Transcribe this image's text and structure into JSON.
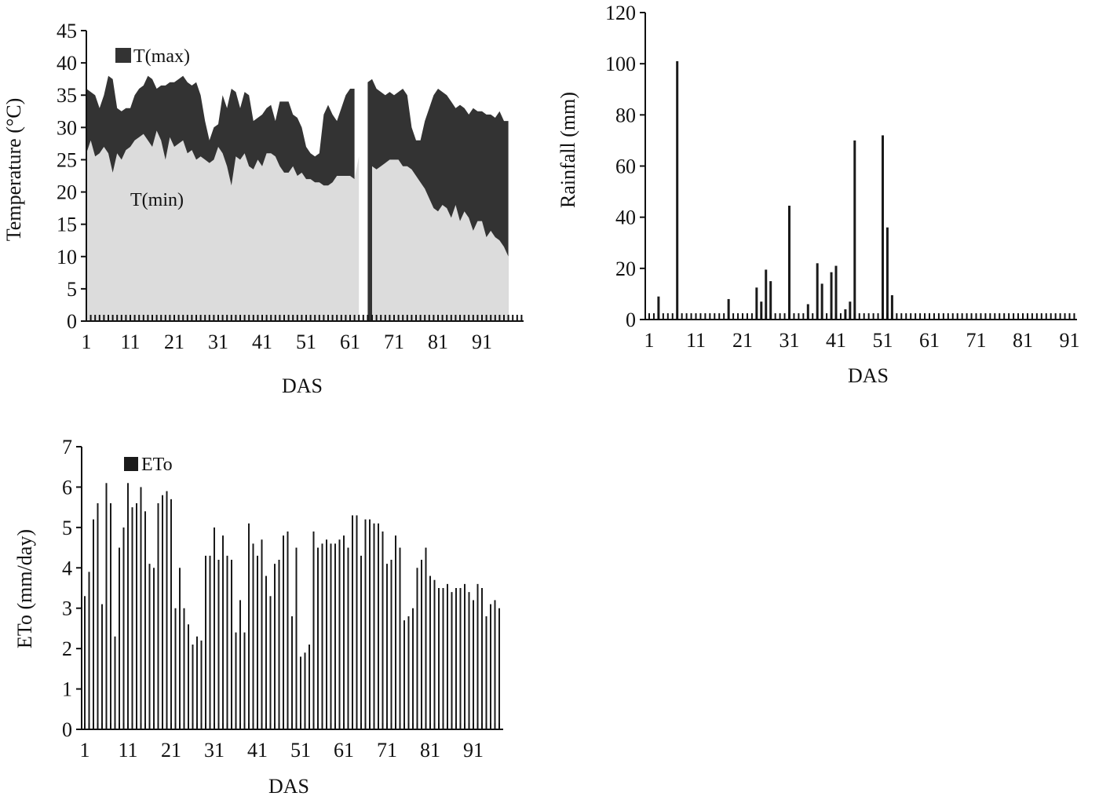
{
  "colors": {
    "tmax": "#333333",
    "tmin": "#dcdcdc",
    "bar": "#1a1a1a",
    "axis": "#111111"
  },
  "chart_data": [
    {
      "type": "area",
      "xlabel": "DAS",
      "ylabel": "Temperature (°C)",
      "ylim": [
        0,
        45
      ],
      "yticks": [
        "0",
        "5",
        "10",
        "15",
        "20",
        "25",
        "30",
        "35",
        "40",
        "45"
      ],
      "xticks": [
        "1",
        "11",
        "21",
        "31",
        "41",
        "51",
        "61",
        "71",
        "81",
        "91"
      ],
      "legend_placement": "top-left",
      "series": [
        {
          "name": "T(max)",
          "values": [
            36,
            35.5,
            35,
            33,
            35,
            38,
            37.5,
            33,
            32.5,
            33,
            33,
            35,
            36,
            36.5,
            38,
            37.5,
            36,
            36.5,
            36.5,
            37,
            37,
            37.5,
            38,
            37,
            36.5,
            37,
            35,
            31,
            28,
            30,
            30.5,
            35,
            33,
            36,
            35.5,
            33,
            35.5,
            35,
            31,
            31.5,
            32,
            33,
            33.5,
            31,
            34,
            34,
            34,
            32,
            31.5,
            30,
            27,
            26,
            25.5,
            26,
            32,
            33.5,
            32,
            31,
            33,
            35,
            36,
            36,
            null,
            null,
            37,
            37.5,
            36,
            35.5,
            35,
            35.5,
            35,
            35.5,
            36,
            35,
            30,
            28,
            28,
            31,
            33,
            35,
            36,
            35.5,
            35,
            34,
            33,
            33.5,
            33,
            32,
            33,
            32.5,
            32.5,
            32,
            32,
            31.5,
            32.5,
            31,
            31
          ]
        },
        {
          "name": "T(min)",
          "values": [
            26,
            28,
            25.5,
            26,
            27,
            26,
            23,
            26,
            25,
            26.5,
            27,
            28,
            28.5,
            29,
            28,
            27,
            29.5,
            28,
            25,
            28.5,
            27,
            27.5,
            28,
            26,
            26.5,
            25,
            25.5,
            25,
            24.5,
            25,
            27,
            26,
            24,
            21,
            25.5,
            25,
            26,
            24,
            23.5,
            25,
            24,
            26,
            26,
            25.5,
            24,
            23,
            23,
            24,
            22.5,
            23,
            22,
            22,
            21.5,
            21.5,
            21,
            21,
            21.5,
            22.5,
            22.5,
            22.5,
            22.5,
            22,
            25.5,
            null,
            null,
            24,
            23.5,
            24,
            24.5,
            25,
            25,
            25,
            24,
            24,
            23.5,
            22.5,
            21.5,
            20.5,
            19,
            17.5,
            17,
            18,
            17.5,
            16,
            18,
            15.5,
            17,
            16,
            14,
            15.5,
            15.5,
            13,
            14,
            13,
            12.5,
            11.5,
            10
          ]
        }
      ]
    },
    {
      "type": "bar",
      "xlabel": "DAS",
      "ylabel": "Rainfall (mm)",
      "ylim": [
        0,
        120
      ],
      "yticks": [
        "0",
        "20",
        "40",
        "60",
        "80",
        "100",
        "120"
      ],
      "xticks": [
        "1",
        "11",
        "21",
        "31",
        "41",
        "51",
        "61",
        "71",
        "81",
        "91"
      ],
      "x": [
        3,
        7,
        18,
        24,
        25,
        26,
        27,
        31,
        35,
        37,
        38,
        40,
        41,
        43,
        44,
        45,
        51,
        52,
        53
      ],
      "values": [
        9,
        101,
        8,
        12.5,
        7,
        19.5,
        15,
        44.5,
        6,
        22,
        14,
        18.5,
        21,
        4,
        7,
        70,
        72,
        36,
        9.5
      ]
    },
    {
      "type": "bar",
      "xlabel": "DAS",
      "ylabel": "ETo (mm/day)",
      "ylim": [
        0,
        7
      ],
      "yticks": [
        "0",
        "1",
        "2",
        "3",
        "4",
        "5",
        "6",
        "7"
      ],
      "xticks": [
        "1",
        "11",
        "21",
        "31",
        "41",
        "51",
        "61",
        "71",
        "81",
        "91"
      ],
      "legend_placement": "top-left",
      "series": [
        {
          "name": "ETo",
          "values": [
            3.3,
            3.9,
            5.2,
            5.6,
            3.1,
            6.1,
            5.6,
            2.3,
            4.5,
            5.0,
            6.1,
            5.5,
            5.6,
            6.0,
            5.4,
            4.1,
            4.0,
            5.6,
            5.8,
            5.9,
            5.7,
            3.0,
            4.0,
            3.0,
            2.6,
            2.1,
            2.3,
            2.2,
            4.3,
            4.3,
            5.0,
            4.2,
            4.8,
            4.3,
            4.2,
            2.4,
            3.2,
            2.4,
            5.1,
            4.6,
            4.3,
            4.7,
            3.8,
            3.3,
            4.1,
            4.2,
            4.8,
            4.9,
            2.8,
            4.5,
            1.8,
            1.9,
            2.1,
            4.9,
            4.5,
            4.6,
            4.7,
            4.6,
            4.6,
            4.7,
            4.8,
            4.5,
            5.3,
            5.3,
            4.3,
            5.2,
            5.2,
            5.1,
            5.1,
            4.9,
            4.1,
            4.2,
            4.8,
            4.5,
            2.7,
            2.8,
            3.0,
            4.0,
            4.2,
            4.5,
            3.8,
            3.7,
            3.5,
            3.5,
            3.6,
            3.4,
            3.5,
            3.5,
            3.6,
            3.4,
            3.2,
            3.6,
            3.5,
            2.8,
            3.1,
            3.2,
            3.0
          ]
        }
      ]
    }
  ]
}
